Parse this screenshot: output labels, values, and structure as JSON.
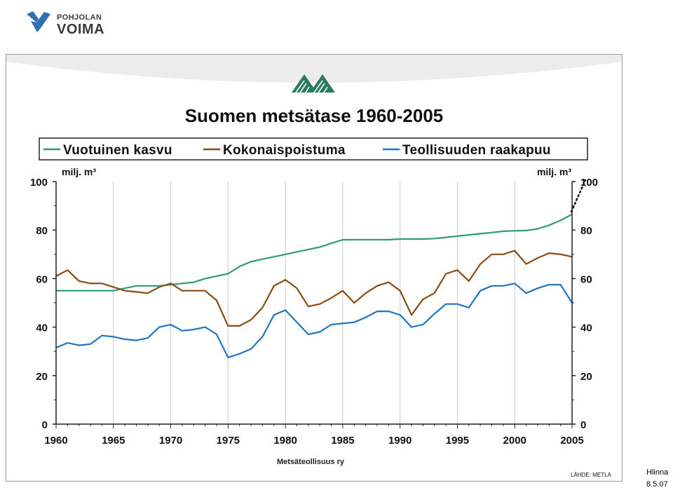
{
  "logo": {
    "line1": "POHJOLAN",
    "line2": "VOIMA"
  },
  "footer": {
    "author": "Hlinna",
    "date": "8.5.07"
  },
  "colors": {
    "green": "#2e9b73",
    "brown": "#8b4a12",
    "blue": "#1f75c0",
    "logo_blue": "#2f6db5",
    "logo_text": "#3a3a3a"
  },
  "chart_data": {
    "type": "line",
    "title": "Suomen metsätase 1960-2005",
    "ylabel_left": "milj. m³",
    "ylabel_right": "milj. m³",
    "source": "Metsäteollisuus ry",
    "source_note": "LÄHDE: METLA",
    "xlim": [
      1960,
      2005
    ],
    "ylim": [
      0,
      100
    ],
    "x_ticks": [
      1960,
      1965,
      1970,
      1975,
      1980,
      1985,
      1990,
      1995,
      2000,
      2005
    ],
    "y_ticks": [
      0,
      20,
      40,
      60,
      80,
      100
    ],
    "grid": "vertical",
    "legend_position": "top",
    "x": [
      1960,
      1961,
      1962,
      1963,
      1964,
      1965,
      1966,
      1967,
      1968,
      1969,
      1970,
      1971,
      1972,
      1973,
      1974,
      1975,
      1976,
      1977,
      1978,
      1979,
      1980,
      1981,
      1982,
      1983,
      1984,
      1985,
      1986,
      1987,
      1988,
      1989,
      1990,
      1991,
      1992,
      1993,
      1994,
      1995,
      1996,
      1997,
      1998,
      1999,
      2000,
      2001,
      2002,
      2003,
      2004,
      2005
    ],
    "series": [
      {
        "name": "Vuotuinen kasvu",
        "color": "#2e9b73",
        "values": [
          55,
          55,
          55,
          55,
          55,
          55,
          56,
          57,
          57,
          57,
          57.5,
          58,
          58.5,
          60,
          61,
          62,
          65,
          67,
          68,
          69,
          70,
          71,
          72,
          73,
          74.5,
          76,
          76,
          76,
          76,
          76,
          76.3,
          76.3,
          76.3,
          76.5,
          77,
          77.5,
          78,
          78.5,
          79,
          79.5,
          79.7,
          79.8,
          80.5,
          82,
          84,
          86.5
        ]
      },
      {
        "name": "Kokonaispoistuma",
        "color": "#8b4a12",
        "values": [
          61,
          63.5,
          59,
          58,
          58,
          56.5,
          55,
          54.5,
          54,
          56.5,
          58,
          55,
          55,
          55,
          51,
          40.5,
          40.5,
          43,
          48,
          57,
          59.5,
          56,
          48.5,
          49.5,
          52,
          55,
          50,
          54,
          57,
          58.5,
          55,
          45,
          51.5,
          54,
          62,
          63.5,
          59,
          66,
          70,
          70,
          71.5,
          66,
          68.5,
          70.5,
          70,
          69
        ]
      },
      {
        "name": "Teollisuuden raakapuu",
        "color": "#1f75c0",
        "values": [
          31.5,
          33.5,
          32.5,
          33,
          36.5,
          36,
          35,
          34.5,
          35.5,
          40,
          41,
          38.5,
          39,
          40,
          37,
          27.5,
          29,
          31,
          36,
          45,
          47,
          42,
          37,
          38,
          41,
          41.5,
          42,
          44,
          46.5,
          46.5,
          45,
          40,
          41,
          45.5,
          49.5,
          49.5,
          48,
          55,
          57,
          57,
          58,
          54,
          56,
          57.5,
          57.5,
          50
        ]
      }
    ]
  }
}
